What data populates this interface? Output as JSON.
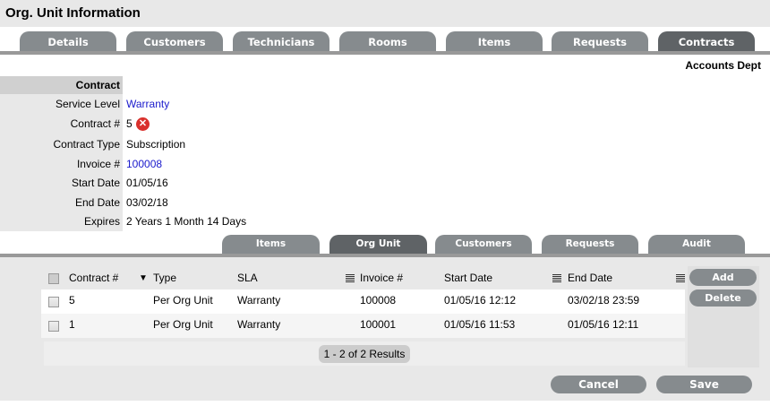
{
  "title": "Org. Unit Information",
  "tabs": [
    "Details",
    "Customers",
    "Technicians",
    "Rooms",
    "Items",
    "Requests",
    "Contracts"
  ],
  "active_tab": "Contracts",
  "org_unit_name": "Accounts Dept",
  "form": {
    "section": "Contract",
    "service_level_label": "Service Level",
    "service_level": "Warranty",
    "contract_no_label": "Contract #",
    "contract_no": "5",
    "contract_type_label": "Contract Type",
    "contract_type": "Subscription",
    "invoice_label": "Invoice #",
    "invoice": "100008",
    "start_label": "Start Date",
    "start": "01/05/16",
    "end_label": "End Date",
    "end": "03/02/18",
    "expires_label": "Expires",
    "expires": "2 Years 1 Month 14 Days"
  },
  "subtabs": [
    "Items",
    "Org Unit",
    "Customers",
    "Requests",
    "Audit"
  ],
  "active_subtab": "Org Unit",
  "table": {
    "columns": [
      "Contract #",
      "Type",
      "SLA",
      "Invoice #",
      "Start Date",
      "End Date"
    ],
    "rows": [
      [
        "5",
        "Per Org Unit",
        "Warranty",
        "100008",
        "01/05/16 12:12",
        "03/02/18 23:59"
      ],
      [
        "1",
        "Per Org Unit",
        "Warranty",
        "100001",
        "01/05/16 11:53",
        "01/05/16 12:11"
      ]
    ],
    "pagination": "1 - 2 of 2 Results"
  },
  "buttons": {
    "add": "Add",
    "delete": "Delete",
    "cancel": "Cancel",
    "save": "Save"
  },
  "colors": {
    "tab": "#868b8e",
    "tab_active": "#5f6366",
    "link": "#1a1acc",
    "delete_icon": "#d9302c"
  }
}
